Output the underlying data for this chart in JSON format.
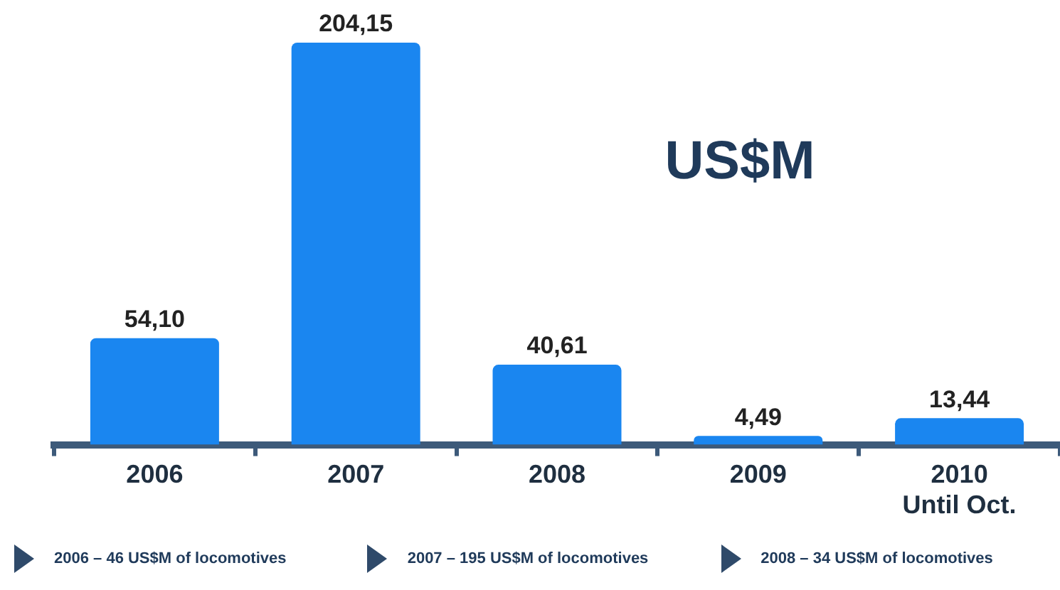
{
  "chart_data": {
    "type": "bar",
    "categories": [
      "2006",
      "2007",
      "2008",
      "2009",
      "2010\nUntil Oct."
    ],
    "values": [
      54.1,
      204.15,
      40.61,
      4.49,
      13.44
    ],
    "value_labels": [
      "54,10",
      "204,15",
      "40,61",
      "4,49",
      "13,44"
    ],
    "color": "#1a86f0",
    "grid": false,
    "legend": false,
    "annotations": [
      "US$M",
      "2006 – 46 US$M of locomotives",
      "2007 – 195 US$M of locomotives",
      "2008 – 34 US$M of locomotives"
    ]
  }
}
